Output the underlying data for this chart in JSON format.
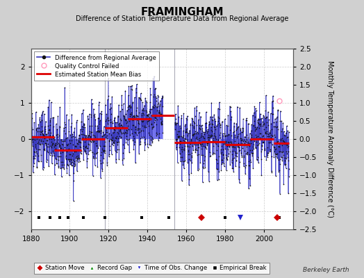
{
  "title": "FRAMINGHAM",
  "subtitle": "Difference of Station Temperature Data from Regional Average",
  "ylabel": "Monthly Temperature Anomaly Difference (°C)",
  "credit": "Berkeley Earth",
  "xlim": [
    1880,
    2015
  ],
  "ylim": [
    -2.5,
    2.5
  ],
  "yticks_left": [
    -2,
    -1,
    0,
    1,
    2
  ],
  "yticks_right": [
    -2.5,
    -2,
    -1.5,
    -1,
    -0.5,
    0,
    0.5,
    1,
    1.5,
    2,
    2.5
  ],
  "xticks": [
    1880,
    1900,
    1920,
    1940,
    1960,
    1980,
    2000
  ],
  "bg_color": "#d8d8d8",
  "plot_bg_color": "#ffffff",
  "data_line_color": "#3333cc",
  "vertical_lines": [
    1918,
    1954
  ],
  "bias_segments": [
    {
      "x": [
        1880,
        1892
      ],
      "y": [
        0.05,
        0.05
      ]
    },
    {
      "x": [
        1892,
        1906
      ],
      "y": [
        -0.3,
        -0.3
      ]
    },
    {
      "x": [
        1906,
        1918
      ],
      "y": [
        0.0,
        0.0
      ]
    },
    {
      "x": [
        1918,
        1930
      ],
      "y": [
        0.3,
        0.3
      ]
    },
    {
      "x": [
        1930,
        1942
      ],
      "y": [
        0.55,
        0.55
      ]
    },
    {
      "x": [
        1942,
        1954
      ],
      "y": [
        0.65,
        0.65
      ]
    },
    {
      "x": [
        1954,
        1968
      ],
      "y": [
        -0.1,
        -0.1
      ]
    },
    {
      "x": [
        1968,
        1980
      ],
      "y": [
        -0.08,
        -0.08
      ]
    },
    {
      "x": [
        1980,
        1993
      ],
      "y": [
        -0.15,
        -0.15
      ]
    },
    {
      "x": [
        1993,
        2005
      ],
      "y": [
        0.0,
        0.0
      ]
    },
    {
      "x": [
        2005,
        2013
      ],
      "y": [
        -0.12,
        -0.12
      ]
    }
  ],
  "station_moves": [
    1968,
    2007
  ],
  "record_gaps": [],
  "obs_changes": [
    1988
  ],
  "empirical_breaks": [
    1884,
    1890,
    1895,
    1899,
    1907,
    1918,
    1937,
    1951,
    1968,
    1980,
    2008
  ],
  "qc_failed_x": [
    2008
  ],
  "qc_failed_y": [
    1.05
  ],
  "seed": 42,
  "n_points_per_year": 12,
  "start_year": 1880,
  "end_year": 2013
}
